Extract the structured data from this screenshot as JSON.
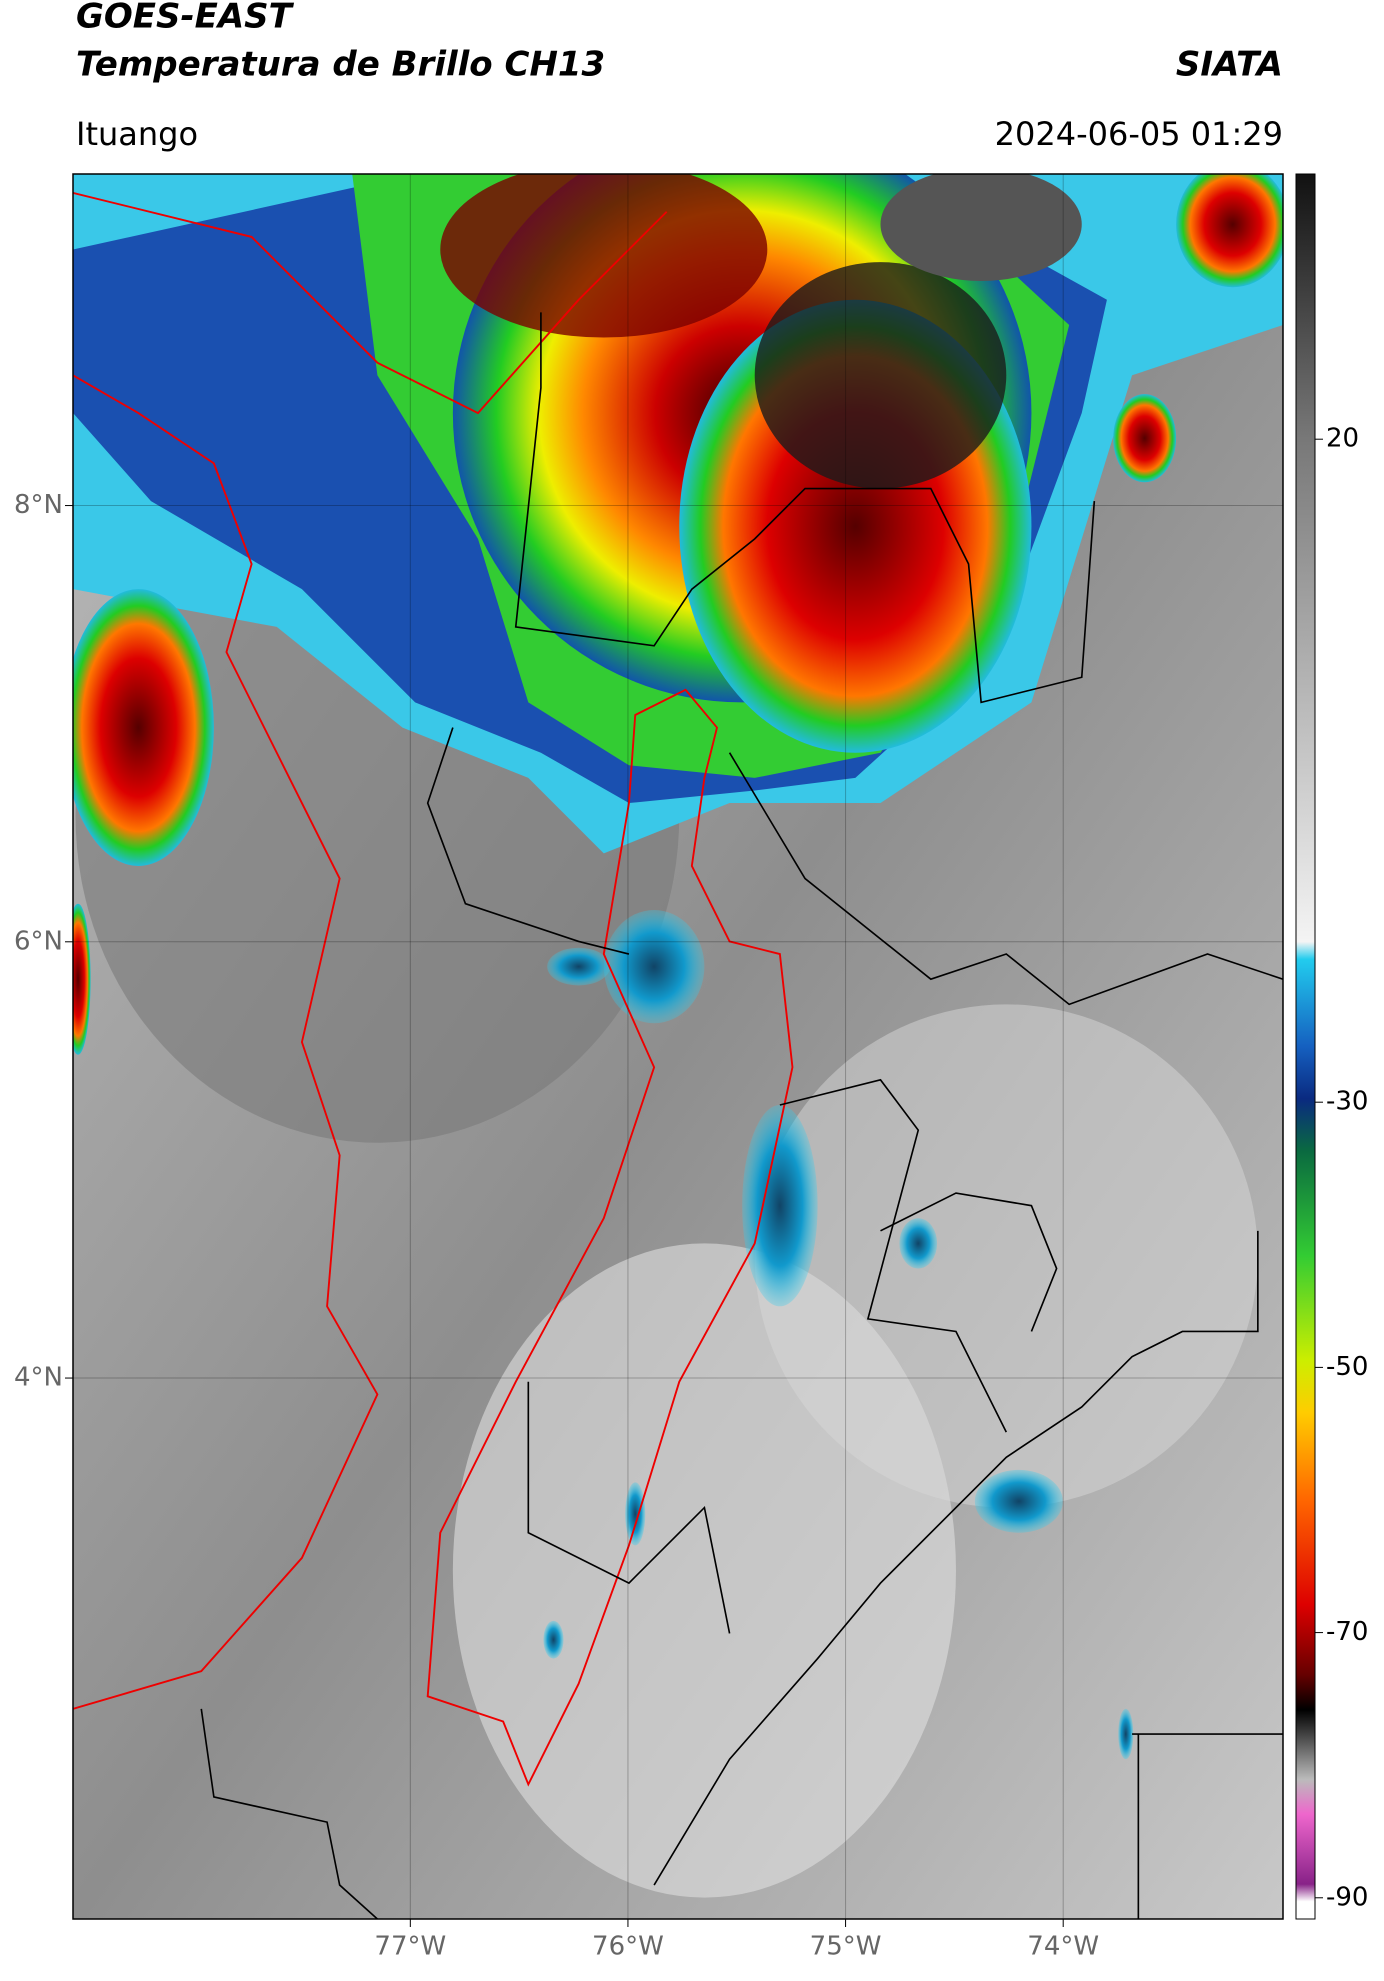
{
  "header": {
    "source": "GOES-EAST",
    "product": "Temperatura de Brillo CH13",
    "organization": "SIATA",
    "location": "Ituango",
    "datetime": "2024-06-05 01:29"
  },
  "map": {
    "lat_range": [
      9.52,
      1.52
    ],
    "lon_range": [
      -78.55,
      -72.99
    ],
    "lat_ticks": [
      {
        "value": 8,
        "label": "8°N"
      },
      {
        "value": 6,
        "label": "6°N"
      },
      {
        "value": 4,
        "label": "4°N"
      }
    ],
    "lon_ticks": [
      {
        "value": -77,
        "label": "77°W"
      },
      {
        "value": -76,
        "label": "76°W"
      },
      {
        "value": -75,
        "label": "75°W"
      },
      {
        "value": -74,
        "label": "74°W"
      }
    ],
    "grid": true
  },
  "colorbar": {
    "lim": [
      40,
      -91.6
    ],
    "ticks": [
      20,
      -30,
      -50,
      -70,
      -90
    ]
  }
}
